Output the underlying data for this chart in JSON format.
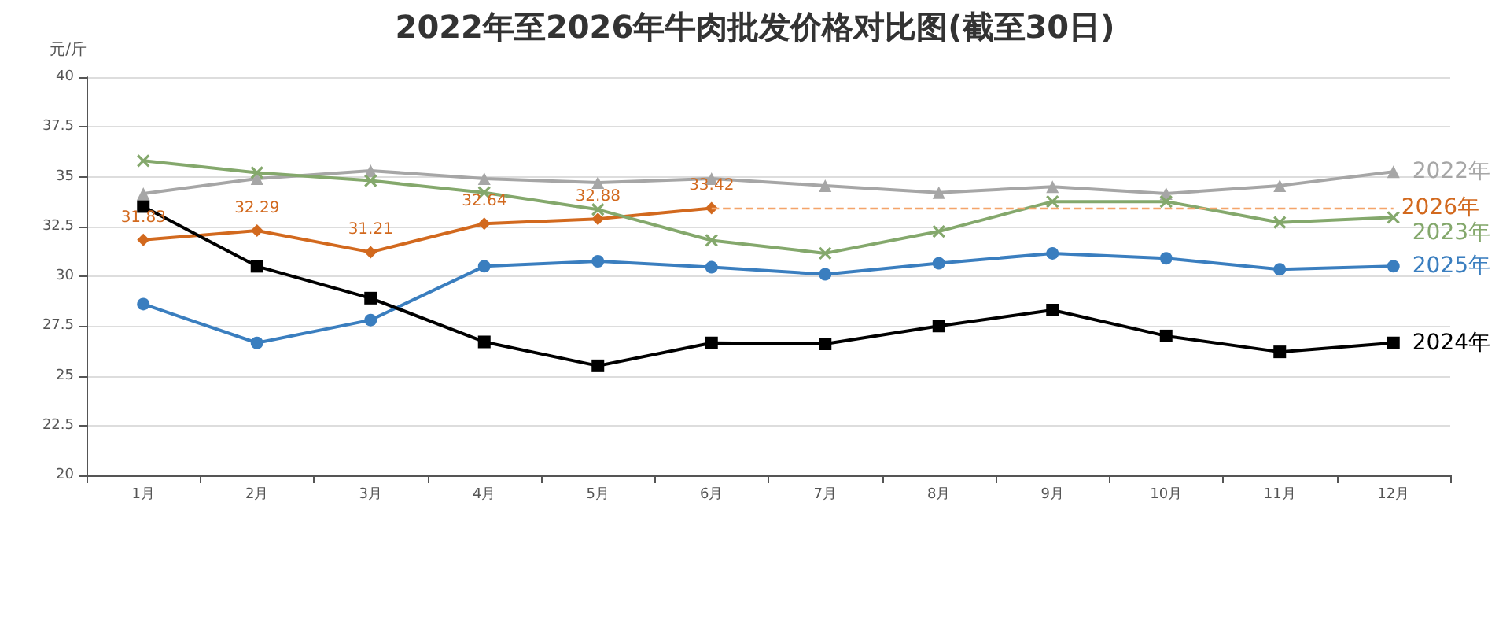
{
  "chart_data": {
    "type": "line",
    "title": "2022年至2026年牛肉批发价格对比图(截至30日)",
    "ylabel": "元/斤",
    "categories": [
      "1月",
      "2月",
      "3月",
      "4月",
      "5月",
      "6月",
      "7月",
      "8月",
      "9月",
      "10月",
      "11月",
      "12月"
    ],
    "series": [
      {
        "name": "2022年",
        "color": "#a6a6a6",
        "marker": "triangle",
        "values": [
          34.15,
          34.9,
          35.3,
          34.9,
          34.7,
          34.9,
          34.55,
          34.2,
          34.5,
          34.15,
          34.55,
          35.25
        ]
      },
      {
        "name": "2026年",
        "color": "#d2691e",
        "marker": "diamond",
        "values": [
          31.83,
          32.29,
          31.21,
          32.64,
          32.88,
          33.42,
          null,
          null,
          null,
          null,
          null,
          null
        ],
        "value_labels": [
          "31.83",
          "32.29",
          "31.21",
          "32.64",
          "32.88",
          "33.42",
          null,
          null,
          null,
          null,
          null,
          null
        ]
      },
      {
        "name": "2023年",
        "color": "#84a86c",
        "marker": "cross",
        "values": [
          35.8,
          35.2,
          34.8,
          34.2,
          33.35,
          31.8,
          31.15,
          32.25,
          33.75,
          33.75,
          32.7,
          32.95
        ]
      },
      {
        "name": "2025年",
        "color": "#3a7ebf",
        "marker": "circle",
        "values": [
          28.6,
          26.65,
          27.8,
          30.5,
          30.75,
          30.45,
          30.1,
          30.65,
          31.15,
          30.9,
          30.35,
          30.5
        ]
      },
      {
        "name": "2024年",
        "color": "#000000",
        "marker": "square",
        "values": [
          33.5,
          30.5,
          28.9,
          26.7,
          25.5,
          26.65,
          26.6,
          27.5,
          28.3,
          27.0,
          26.2,
          26.65
        ]
      }
    ],
    "ref_lines": [
      {
        "axis": "y",
        "value": 33.42,
        "color": "#f4a46a",
        "line_style": "dashed"
      }
    ],
    "ylim": [
      20,
      40
    ],
    "yticks": [
      20,
      22.5,
      25,
      27.5,
      30,
      32.5,
      35,
      37.5,
      40
    ],
    "grid": "y",
    "legend": false
  }
}
